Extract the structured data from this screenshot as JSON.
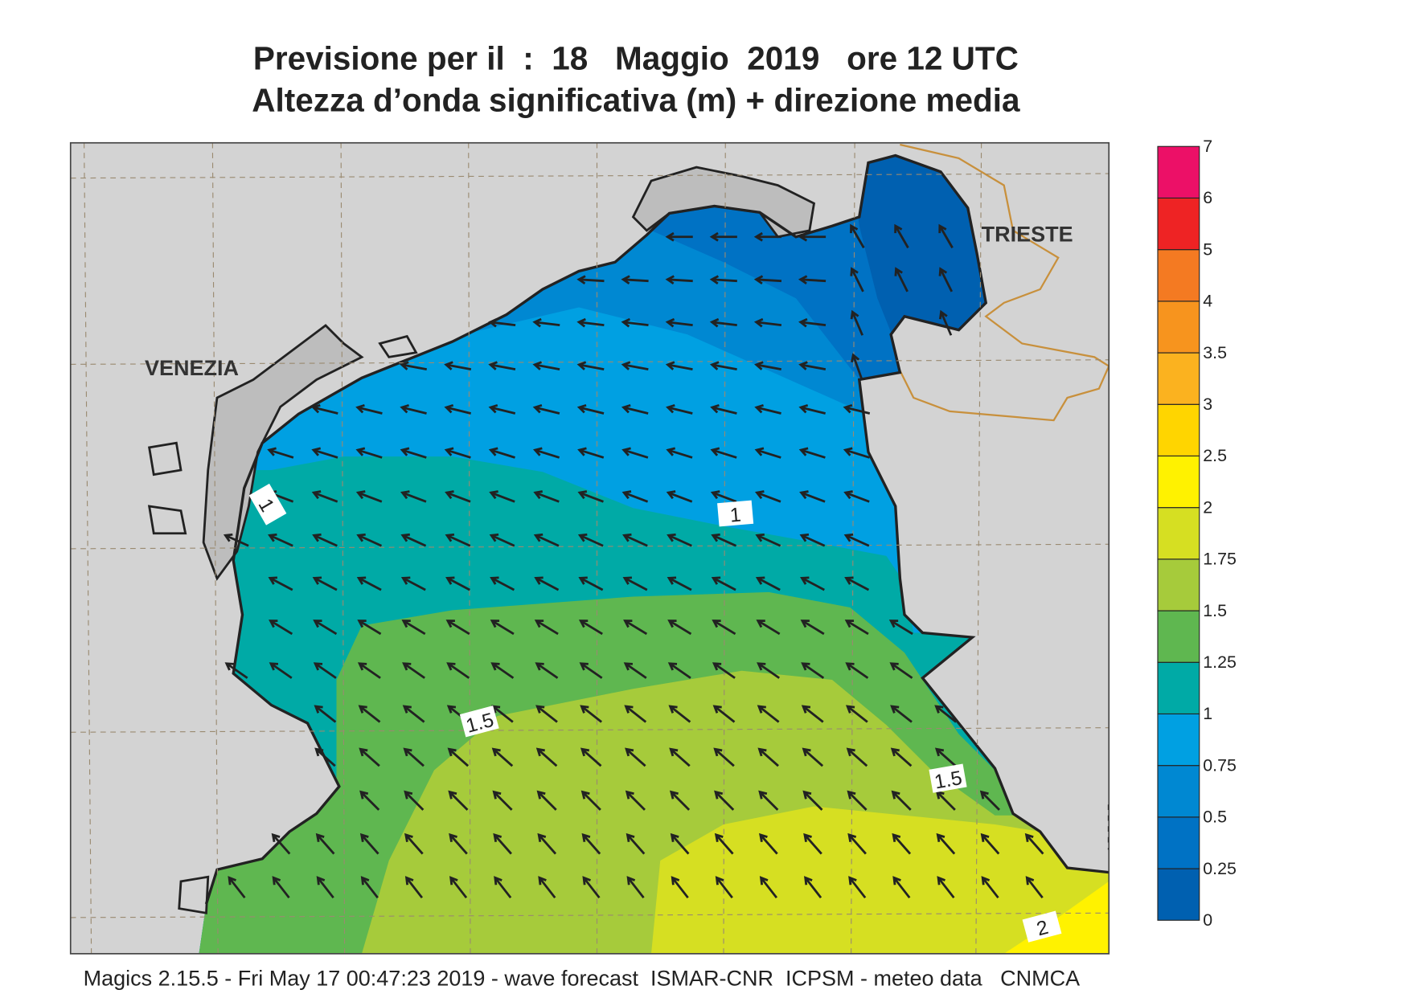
{
  "title": [
    "Previsione per il  :  18   Maggio  2019   ore 12 UTC",
    "Altezza d’onda significativa (m) + direzione media"
  ],
  "places": [
    "VENEZIA",
    "TRIESTE"
  ],
  "contour_labels": [
    "1",
    "1",
    "1.5",
    "1.5",
    "2"
  ],
  "colorbar": {
    "levels": [
      0,
      0.25,
      0.5,
      0.75,
      1,
      1.25,
      1.5,
      1.75,
      2,
      2.5,
      3,
      3.5,
      4,
      5,
      6,
      7
    ],
    "colors": [
      "#0060b0",
      "#0072c4",
      "#0088d2",
      "#00a0e2",
      "#00aaa6",
      "#5fb750",
      "#a6cb3b",
      "#d6df22",
      "#fff200",
      "#ffd500",
      "#fbb21f",
      "#f7941e",
      "#f47a22",
      "#ee2324",
      "#ec1067"
    ]
  },
  "footer": "Magics 2.15.5 - Fri May 17 00:47:23 2019 - wave forecast  ISMAR-CNR  ICPSM - meteo data   CNMCA"
}
